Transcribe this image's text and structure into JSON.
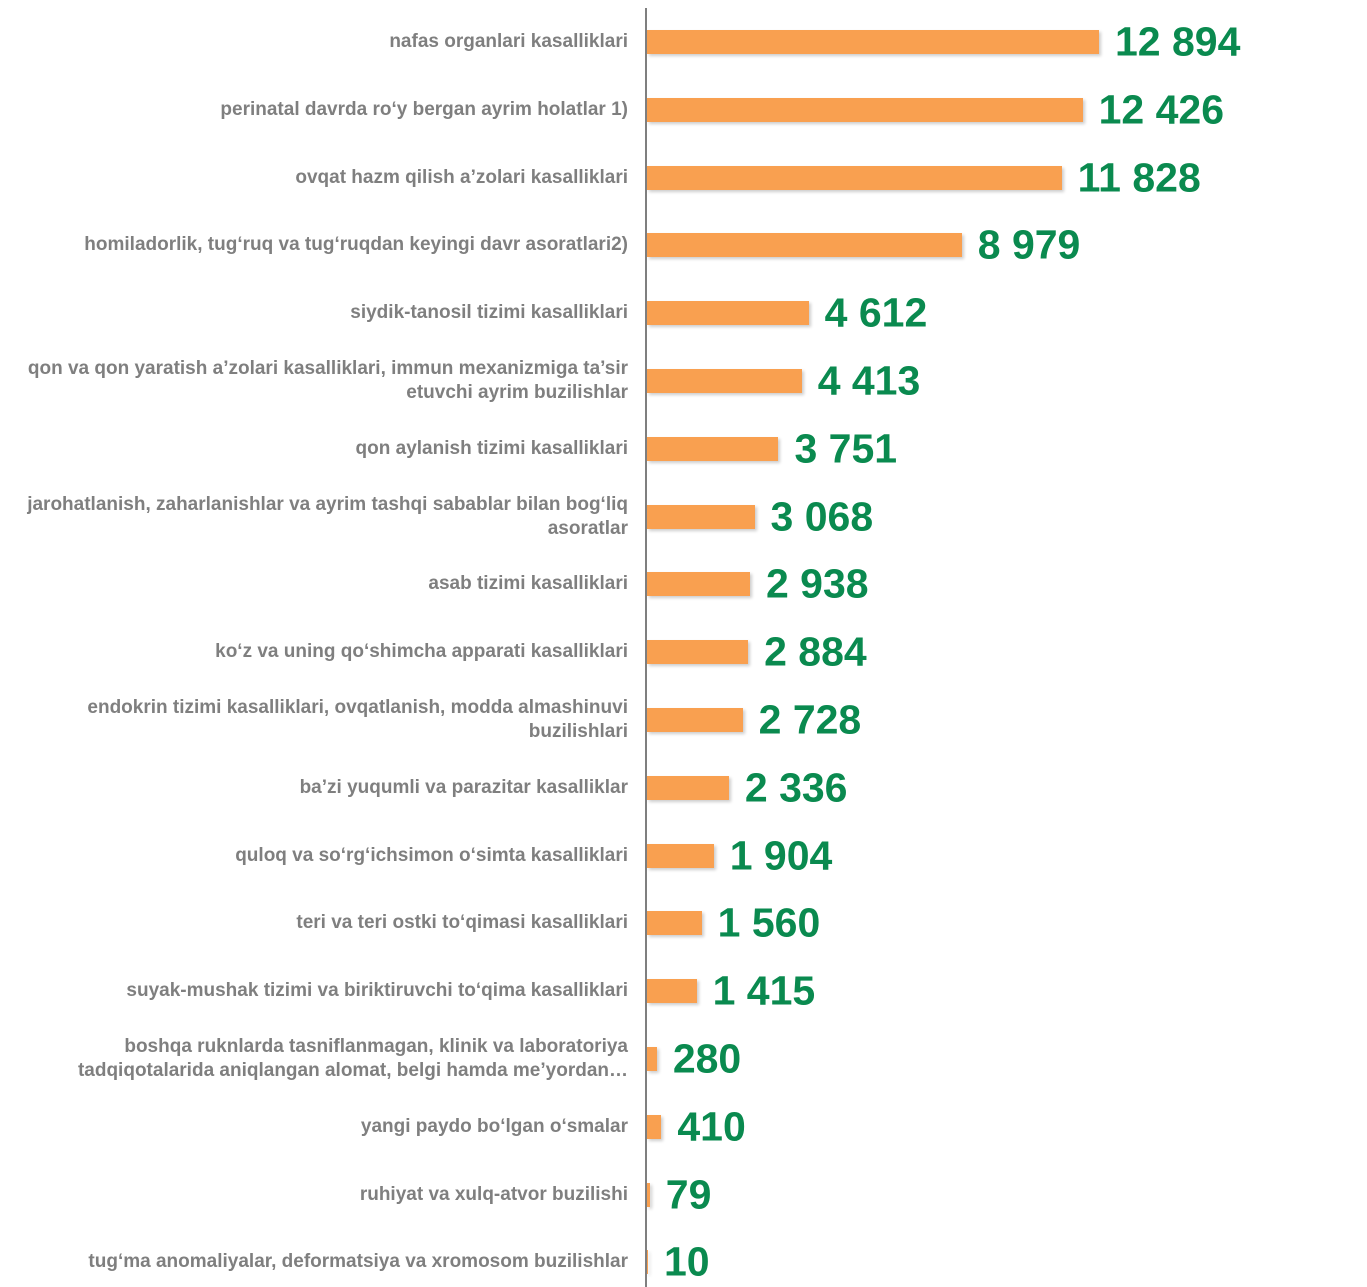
{
  "chart_data": {
    "type": "bar",
    "orientation": "horizontal",
    "color": "#f9a050",
    "categories": [
      "nafas organlari kasalliklari",
      "perinatal davrda ro‘y bergan ayrim holatlar 1)",
      "ovqat hazm qilish a’zolari   kasalliklari",
      "homiladorlik, tug‘ruq va tug‘ruqdan keyingi davr asoratlari2)",
      "siydik-tanosil tizimi kasalliklari",
      "qon va qon yaratish a’zolari kasalliklari, immun mexanizmiga ta’sir etuvchi ayrim buzilishlar",
      "qon aylanish tizimi kasalliklari",
      "jarohatlanish, zaharlanishlar  va ayrim tashqi sabablar bilan bog‘liq asoratlar",
      "asab tizimi kasalliklari",
      "ko‘z va uning qo‘shimcha apparati kasalliklari",
      "endokrin tizimi kasalliklari, ovqatlanish, modda almashinuvi buzilishlari",
      "ba’zi yuqumli va parazitar kasalliklar",
      "quloq va so‘rg‘ichsimon o‘simta kasalliklari",
      "teri va teri ostki to‘qimasi  kasalliklari",
      "suyak-mushak tizimi va biriktiruvchi to‘qima kasalliklari",
      "boshqa ruknlarda tasniflanmagan, klinik va laboratoriya tadqiqotalarida aniqlangan alomat, belgi hamda me’yordan…",
      "yangi paydo bo‘lgan o‘smalar",
      "ruhiyat va xulq-atvor buzilishi",
      "tug‘ma anomaliyalar, deformatsiya va xromosom buzilishlar"
    ],
    "values": [
      12894,
      12426,
      11828,
      8979,
      4612,
      4413,
      3751,
      3068,
      2938,
      2884,
      2728,
      2336,
      1904,
      1560,
      1415,
      280,
      410,
      79,
      10
    ],
    "value_labels": [
      "12 894",
      "12 426",
      "11 828",
      "8 979",
      "4 612",
      "4 413",
      "3 751",
      "3 068",
      "2 938",
      "2 884",
      "2 728",
      "2 336",
      "1 904",
      "1 560",
      "1 415",
      "280",
      "410",
      "79",
      "10"
    ]
  }
}
